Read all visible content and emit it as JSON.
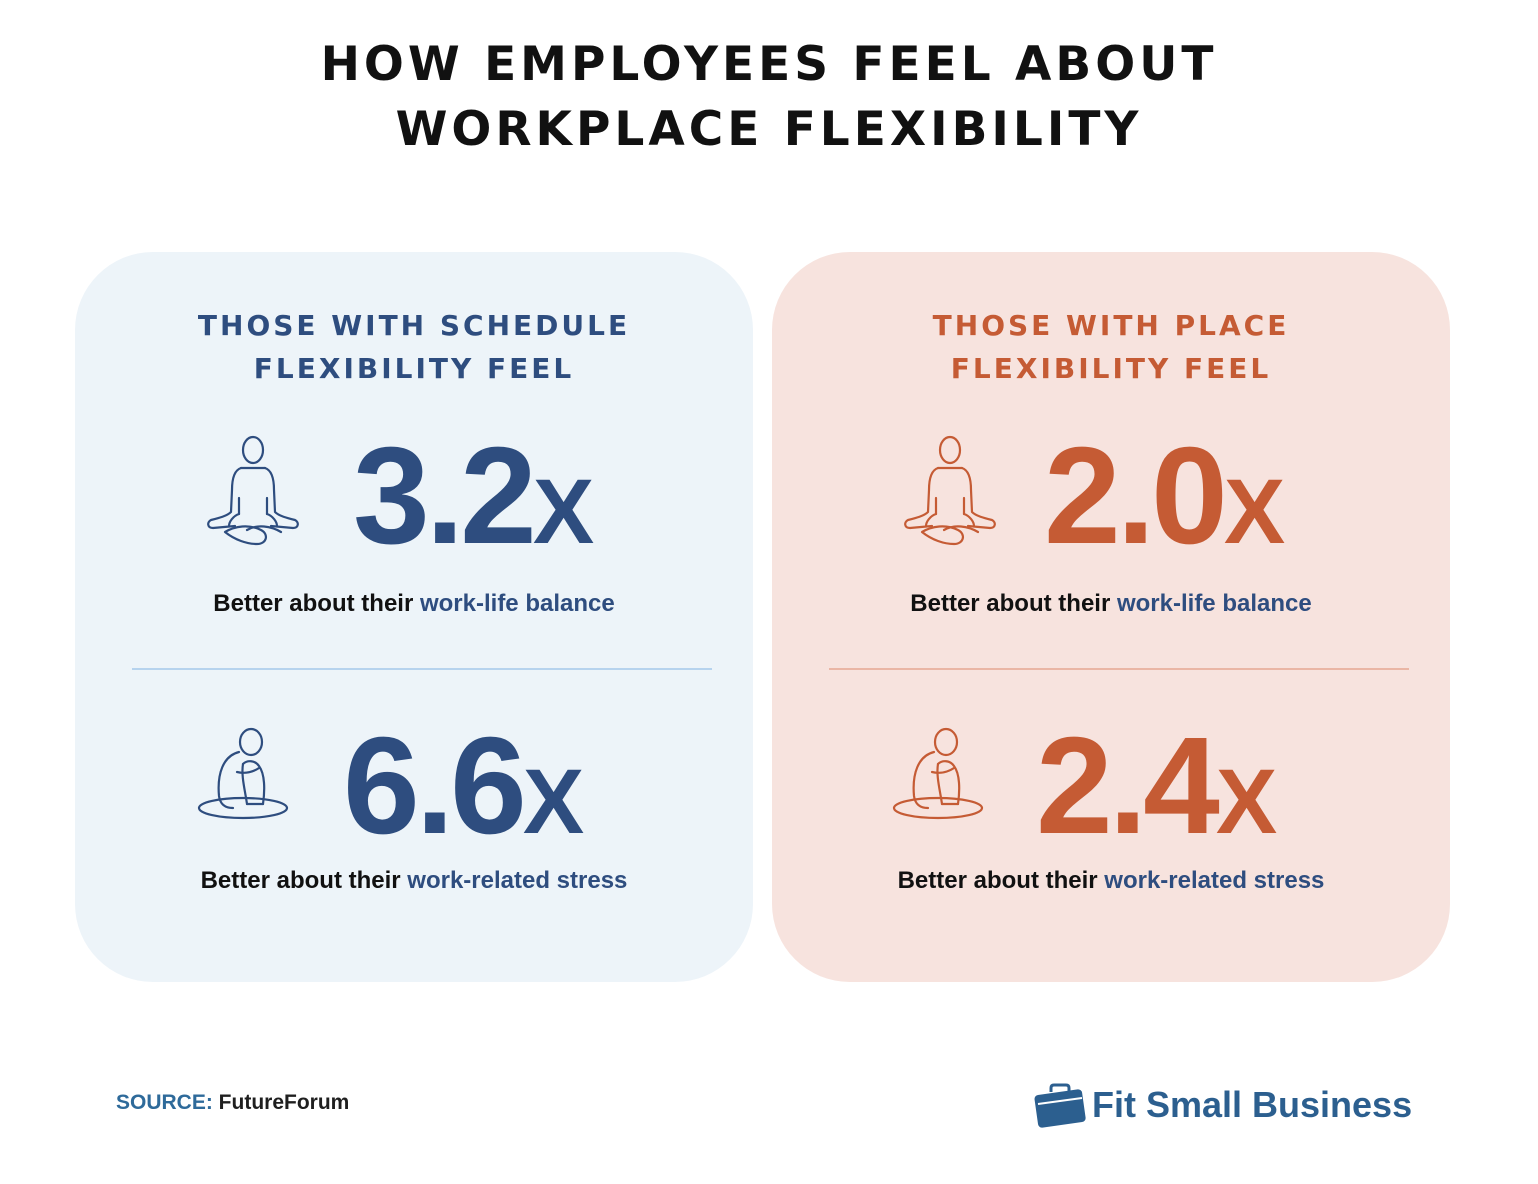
{
  "title": {
    "line1": "HOW EMPLOYEES FEEL ABOUT",
    "line2": "WORKPLACE FLEXIBILITY"
  },
  "colors": {
    "schedule_accent": "#2e4d7f",
    "place_accent": "#c55b34",
    "schedule_bg": "#edf4f9",
    "place_bg": "#f7e3de",
    "highlight_text": "#2e4d7f"
  },
  "schedule": {
    "heading_line1": "THOSE WITH SCHEDULE",
    "heading_line2": "FLEXIBILITY FEEL",
    "stat1": {
      "value": "3.2",
      "suffix": "X",
      "icon": "meditation-icon",
      "caption_prefix": "Better about their ",
      "caption_highlight": "work-life balance"
    },
    "stat2": {
      "value": "6.6",
      "suffix": "X",
      "icon": "stressed-person-icon",
      "caption_prefix": "Better about their ",
      "caption_highlight": "work-related stress"
    }
  },
  "place": {
    "heading_line1": "THOSE WITH PLACE",
    "heading_line2": "FLEXIBILITY FEEL",
    "stat1": {
      "value": "2.0",
      "suffix": "X",
      "icon": "meditation-icon",
      "caption_prefix": "Better about their ",
      "caption_highlight": "work-life balance"
    },
    "stat2": {
      "value": "2.4",
      "suffix": "X",
      "icon": "stressed-person-icon",
      "caption_prefix": "Better about their ",
      "caption_highlight": "work-related stress"
    }
  },
  "footer": {
    "source_label": "SOURCE:",
    "source_value": " FutureForum",
    "brand": "Fit Small Business",
    "brand_icon": "briefcase-icon"
  }
}
